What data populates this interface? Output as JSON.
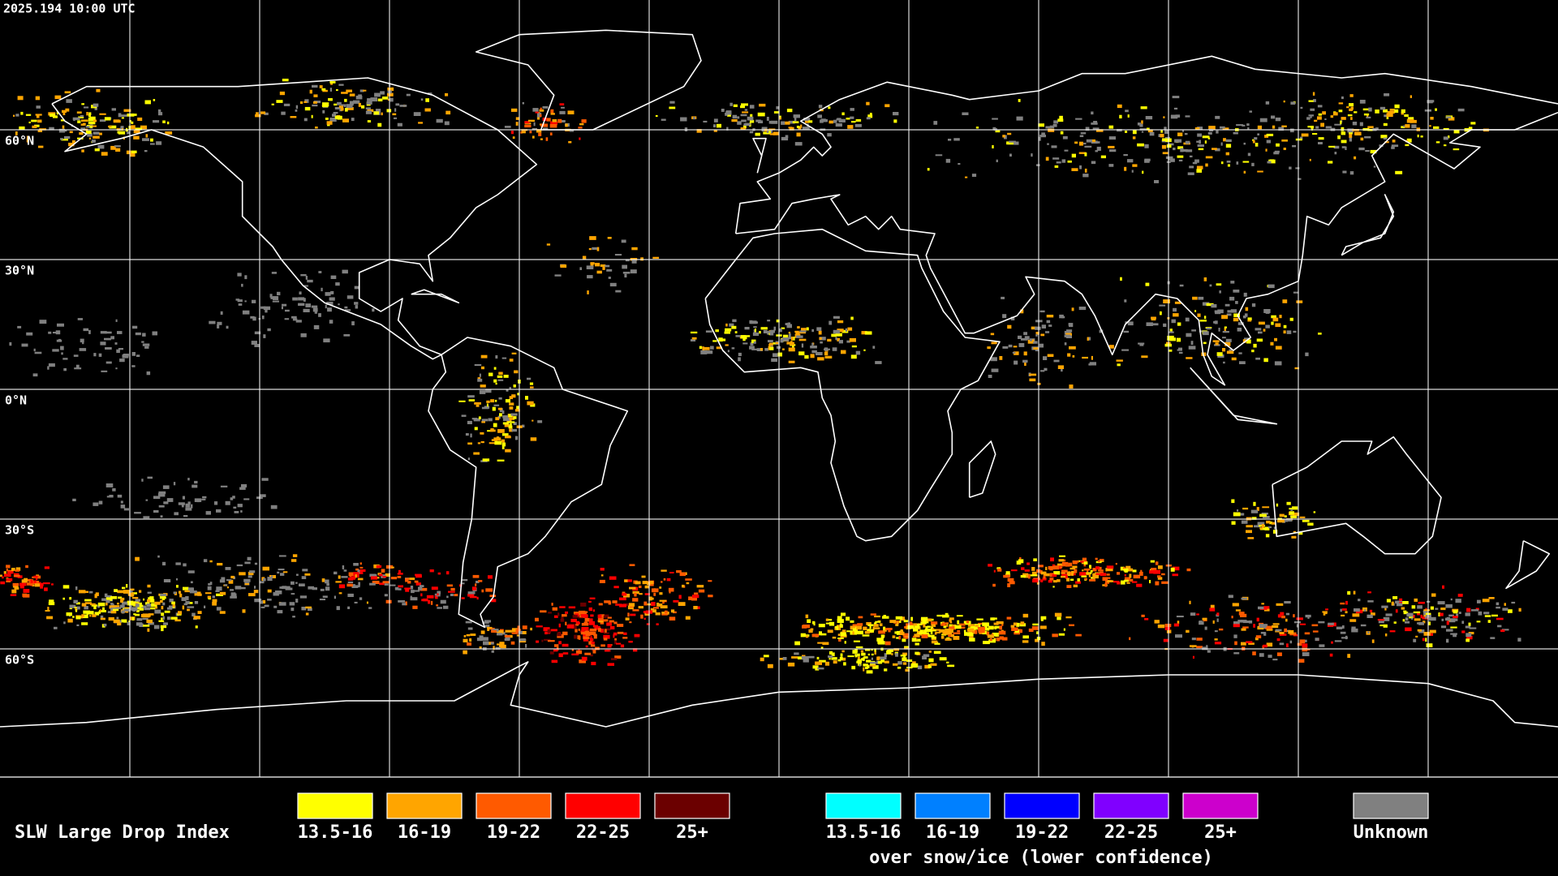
{
  "timestamp": "2025.194 10:00 UTC",
  "latitude_labels": [
    "60°N",
    "30°N",
    "0°N",
    "30°S",
    "60°S"
  ],
  "legend": {
    "title": "SLW Large Drop Index",
    "items": [
      {
        "label": "13.5-16",
        "color": "#ffff00"
      },
      {
        "label": "16-19",
        "color": "#ffa500"
      },
      {
        "label": "19-22",
        "color": "#ff5a00"
      },
      {
        "label": "22-25",
        "color": "#ff0000"
      },
      {
        "label": "25+",
        "color": "#6b0000"
      }
    ],
    "snow_items": [
      {
        "label": "13.5-16",
        "color": "#00ffff"
      },
      {
        "label": "16-19",
        "color": "#0080ff"
      },
      {
        "label": "19-22",
        "color": "#0000ff"
      },
      {
        "label": "22-25",
        "color": "#8000ff"
      },
      {
        "label": "25+",
        "color": "#cc00cc"
      }
    ],
    "snow_caption": "over snow/ice (lower confidence)",
    "unknown": {
      "label": "Unknown",
      "color": "#808080"
    }
  }
}
